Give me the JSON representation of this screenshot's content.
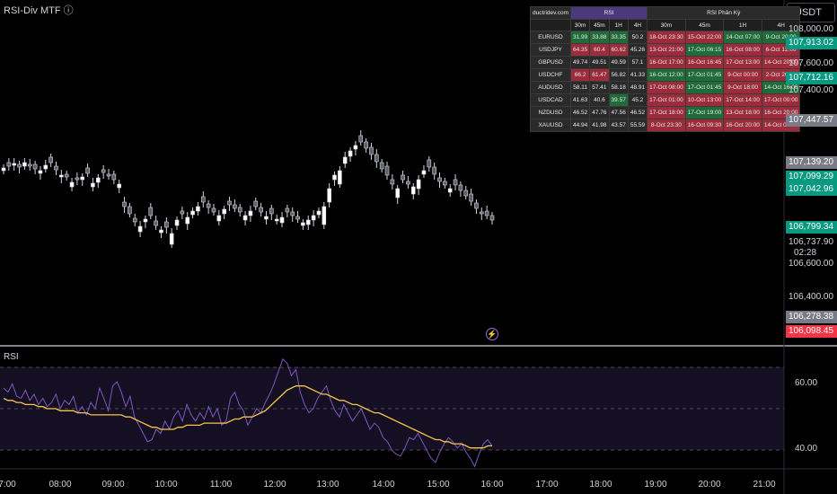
{
  "indicator_title": "RSI-Div MTF ⓘ",
  "currency_button": "USDT",
  "rsi_pane_label": "RSI",
  "bolt_icon": "lightning-icon",
  "table": {
    "brand": "ductridev.com",
    "rsi_header": "RSI",
    "div_header": "RSI Phân Kỳ",
    "tf_headers": [
      "30m",
      "45m",
      "1H",
      "4H",
      "30m",
      "45m",
      "1H",
      "4H"
    ],
    "rows": [
      {
        "sym": "EURUSD",
        "rsi": [
          [
            "31.99",
            "g"
          ],
          [
            "33.88",
            "g"
          ],
          [
            "33.35",
            "g"
          ],
          [
            "50.2",
            "n"
          ]
        ],
        "div": [
          [
            "18-Oct 23:30",
            "r"
          ],
          [
            "15-Oct 22:00",
            "r"
          ],
          [
            "14-Oct 07:00",
            "g"
          ],
          [
            "9-Oct 20:00",
            "g"
          ]
        ]
      },
      {
        "sym": "USDJPY",
        "rsi": [
          [
            "64.35",
            "r"
          ],
          [
            "60.4",
            "r"
          ],
          [
            "60.62",
            "r"
          ],
          [
            "45.26",
            "n"
          ]
        ],
        "div": [
          [
            "13-Oct 21:00",
            "r"
          ],
          [
            "17-Oct 06:15",
            "g"
          ],
          [
            "16-Oct 08:00",
            "r"
          ],
          [
            "6-Oct 12:00",
            "r"
          ]
        ]
      },
      {
        "sym": "GBPUSD",
        "rsi": [
          [
            "49.74",
            "n"
          ],
          [
            "49.51",
            "n"
          ],
          [
            "49.59",
            "n"
          ],
          [
            "57.1",
            "n"
          ]
        ],
        "div": [
          [
            "16-Oct 17:00",
            "r"
          ],
          [
            "16-Oct 16:45",
            "r"
          ],
          [
            "17-Oct 13:00",
            "r"
          ],
          [
            "14-Oct 20:00",
            "r"
          ]
        ]
      },
      {
        "sym": "USDCHF",
        "rsi": [
          [
            "66.2",
            "r"
          ],
          [
            "61.47",
            "r"
          ],
          [
            "56.82",
            "n"
          ],
          [
            "41.33",
            "n"
          ]
        ],
        "div": [
          [
            "16-Oct 12:00",
            "g"
          ],
          [
            "17-Oct 01:45",
            "g"
          ],
          [
            "9-Oct 00:00",
            "r"
          ],
          [
            "2-Oct 20:00",
            "r"
          ]
        ]
      },
      {
        "sym": "AUDUSD",
        "rsi": [
          [
            "58.11",
            "n"
          ],
          [
            "57.41",
            "n"
          ],
          [
            "58.18",
            "n"
          ],
          [
            "48.91",
            "n"
          ]
        ],
        "div": [
          [
            "17-Oct 08:00",
            "r"
          ],
          [
            "17-Oct 01:45",
            "g"
          ],
          [
            "9-Oct 18:00",
            "r"
          ],
          [
            "14-Oct 16:00",
            "g"
          ]
        ]
      },
      {
        "sym": "USDCAD",
        "rsi": [
          [
            "41.63",
            "n"
          ],
          [
            "40.6",
            "n"
          ],
          [
            "39.57",
            "g"
          ],
          [
            "45.2",
            "n"
          ]
        ],
        "div": [
          [
            "17-Oct 01:00",
            "r"
          ],
          [
            "10-Oct 13:00",
            "r"
          ],
          [
            "17-Oct 14:00",
            "r"
          ],
          [
            "17-Oct 00:00",
            "r"
          ]
        ]
      },
      {
        "sym": "NZDUSD",
        "rsi": [
          [
            "46.52",
            "n"
          ],
          [
            "47.76",
            "n"
          ],
          [
            "47.56",
            "n"
          ],
          [
            "46.52",
            "n"
          ]
        ],
        "div": [
          [
            "17-Oct 18:00",
            "r"
          ],
          [
            "17-Oct 19:00",
            "g"
          ],
          [
            "13-Oct 18:00",
            "r"
          ],
          [
            "16-Oct 20:00",
            "r"
          ]
        ]
      },
      {
        "sym": "XAUUSD",
        "rsi": [
          [
            "44.94",
            "n"
          ],
          [
            "41.98",
            "n"
          ],
          [
            "43.57",
            "n"
          ],
          [
            "55.59",
            "n"
          ]
        ],
        "div": [
          [
            "8-Oct 23:30",
            "r"
          ],
          [
            "16-Oct 09:30",
            "r"
          ],
          [
            "16-Oct 20:00",
            "r"
          ],
          [
            "14-Oct 05:00",
            "r"
          ]
        ]
      }
    ]
  },
  "price_axis_labels": [
    "108,000.00",
    "107,800.00",
    "107,600.00",
    "107,400.00",
    "106,600.00",
    "106,400.00",
    "106,200.00"
  ],
  "price_tags": [
    {
      "text": "107,913.02",
      "color": "#089981"
    },
    {
      "text": "107,712.16",
      "color": "#089981"
    },
    {
      "text": "107,447.57",
      "color": "#787b86"
    },
    {
      "text": "107,139.20",
      "color": "#787b86"
    },
    {
      "text": "107,099.29",
      "color": "#089981"
    },
    {
      "text": "107,042.96",
      "color": "#089981"
    },
    {
      "text": "106,799.34",
      "color": "#089981"
    },
    {
      "text": "106,278.38",
      "color": "#787b86"
    },
    {
      "text": "106,098.45",
      "color": "#f23645"
    }
  ],
  "current_price": "106,737.90",
  "countdown": "02:28",
  "rsi_axis_labels": [
    "60.00",
    "40.00"
  ],
  "time_labels": [
    "7:00",
    "08:00",
    "09:00",
    "10:00",
    "11:00",
    "12:00",
    "13:00",
    "14:00",
    "15:00",
    "16:00",
    "17:00",
    "18:00",
    "19:00",
    "20:00",
    "21:00"
  ],
  "chart_data": {
    "type": "candlestick",
    "x": [
      "07:00",
      "08:00",
      "09:00",
      "10:00",
      "11:00",
      "12:00",
      "13:00",
      "14:00",
      "15:00",
      "16:00"
    ],
    "price_ylim": [
      106100,
      108100
    ],
    "rsi": {
      "ylim": [
        20,
        80
      ],
      "levels": [
        70,
        30
      ],
      "rsi_color": "#7e57c2",
      "ma_color": "#f7c548",
      "rsi_values": [
        60,
        58,
        62,
        56,
        55,
        59,
        54,
        57,
        52,
        55,
        51,
        53,
        57,
        50,
        54,
        52,
        56,
        48,
        51,
        47,
        53,
        50,
        60,
        55,
        49,
        61,
        63,
        58,
        51,
        56,
        46,
        42,
        38,
        34,
        35,
        40,
        38,
        44,
        40,
        46,
        49,
        44,
        52,
        47,
        44,
        48,
        45,
        51,
        46,
        50,
        42,
        44,
        55,
        58,
        52,
        49,
        42,
        46,
        50,
        48,
        53,
        57,
        62,
        68,
        74,
        72,
        66,
        69,
        58,
        52,
        48,
        50,
        55,
        58,
        61,
        54,
        49,
        46,
        52,
        48,
        44,
        47,
        50,
        45,
        40,
        43,
        41,
        36,
        34,
        30,
        28,
        27,
        31,
        36,
        35,
        38,
        34,
        30,
        26,
        24,
        29,
        33,
        36,
        34,
        31,
        33,
        29,
        26,
        22,
        28,
        33,
        35,
        32
      ],
      "ma_values": [
        55,
        54,
        54,
        53,
        53,
        52,
        52,
        52,
        51,
        51,
        50,
        50,
        50,
        49,
        49,
        49,
        49,
        48,
        48,
        48,
        47,
        47,
        47,
        47,
        47,
        47,
        47,
        47,
        46,
        46,
        45,
        44,
        43,
        42,
        41,
        41,
        40,
        40,
        40,
        40,
        41,
        41,
        42,
        42,
        42,
        42,
        43,
        43,
        43,
        43,
        43,
        43,
        44,
        45,
        45,
        46,
        46,
        46,
        47,
        48,
        49,
        51,
        53,
        55,
        57,
        59,
        60,
        61,
        61,
        61,
        60,
        59,
        58,
        57,
        57,
        56,
        55,
        54,
        54,
        53,
        52,
        52,
        51,
        50,
        49,
        48,
        48,
        47,
        46,
        45,
        44,
        43,
        42,
        41,
        40,
        39,
        38,
        37,
        36,
        35,
        35,
        34,
        34,
        33,
        33,
        33,
        32,
        31,
        31,
        31,
        31,
        32,
        32
      ]
    }
  }
}
